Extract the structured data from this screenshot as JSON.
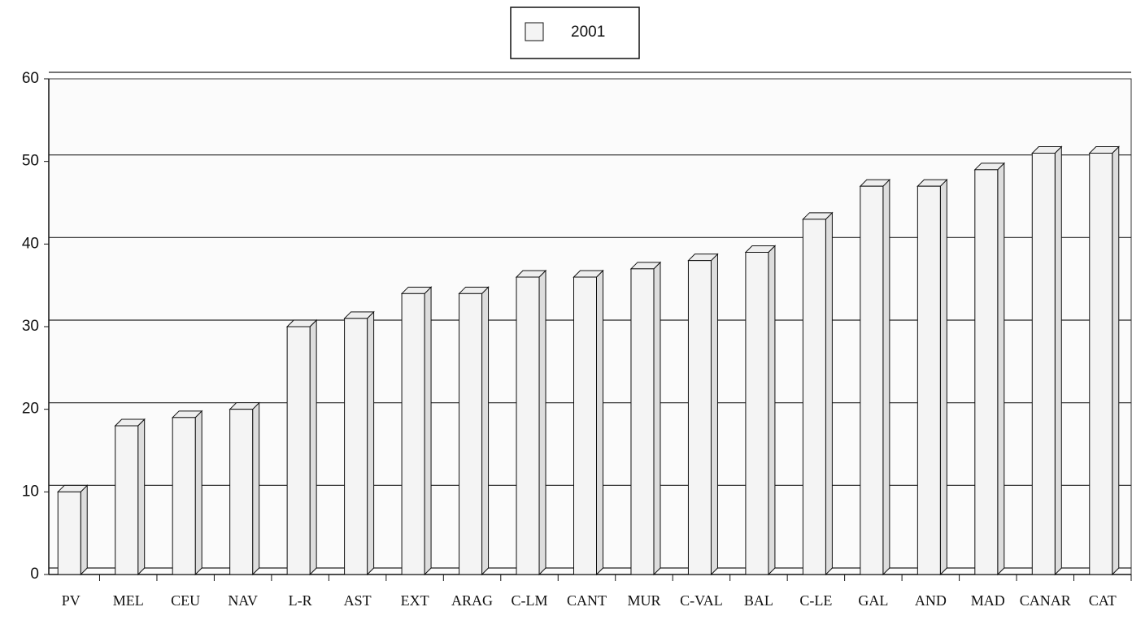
{
  "chart_data": {
    "type": "bar",
    "categories": [
      "PV",
      "MEL",
      "CEU",
      "NAV",
      "L-R",
      "AST",
      "EXT",
      "ARAG",
      "C-LM",
      "CANT",
      "MUR",
      "C-VAL",
      "BAL",
      "C-LE",
      "GAL",
      "AND",
      "MAD",
      "CANAR",
      "CAT"
    ],
    "series": [
      {
        "name": "2001",
        "color": "#f4f4f4",
        "values": [
          10,
          18,
          19,
          20,
          30,
          31,
          34,
          34,
          36,
          36,
          37,
          38,
          39,
          43,
          47,
          47,
          49,
          51,
          51
        ]
      }
    ],
    "ylim": [
      0,
      60
    ],
    "yticks": [
      0,
      10,
      20,
      30,
      40,
      50,
      60
    ],
    "grid": true
  }
}
